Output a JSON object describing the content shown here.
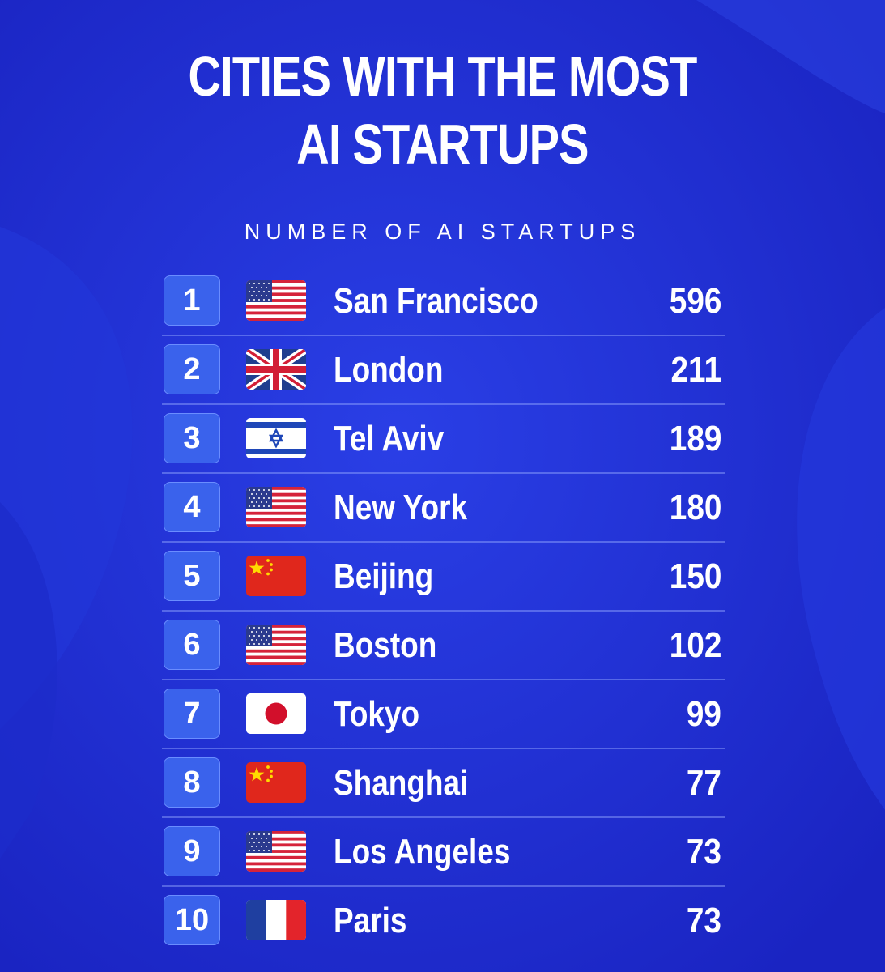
{
  "chart_data": {
    "type": "table",
    "title_lines": [
      "CITIES WITH THE MOST",
      "AI STARTUPS"
    ],
    "subtitle": "NUMBER OF AI STARTUPS",
    "rows": [
      {
        "rank": "1",
        "flag": "us-flag-icon",
        "city": "San Francisco",
        "value": "596"
      },
      {
        "rank": "2",
        "flag": "uk-flag-icon",
        "city": "London",
        "value": "211"
      },
      {
        "rank": "3",
        "flag": "israel-flag-icon",
        "city": "Tel Aviv",
        "value": "189"
      },
      {
        "rank": "4",
        "flag": "us-flag-icon",
        "city": "New York",
        "value": "180"
      },
      {
        "rank": "5",
        "flag": "china-flag-icon",
        "city": "Beijing",
        "value": "150"
      },
      {
        "rank": "6",
        "flag": "us-flag-icon",
        "city": "Boston",
        "value": "102"
      },
      {
        "rank": "7",
        "flag": "japan-flag-icon",
        "city": "Tokyo",
        "value": "99"
      },
      {
        "rank": "8",
        "flag": "china-flag-icon",
        "city": "Shanghai",
        "value": "77"
      },
      {
        "rank": "9",
        "flag": "us-flag-icon",
        "city": "Los Angeles",
        "value": "73"
      },
      {
        "rank": "10",
        "flag": "france-flag-icon",
        "city": "Paris",
        "value": "73"
      }
    ],
    "colors": {
      "background": "#1f2fd0",
      "badge": "#3a62ec",
      "text": "#ffffff"
    }
  }
}
